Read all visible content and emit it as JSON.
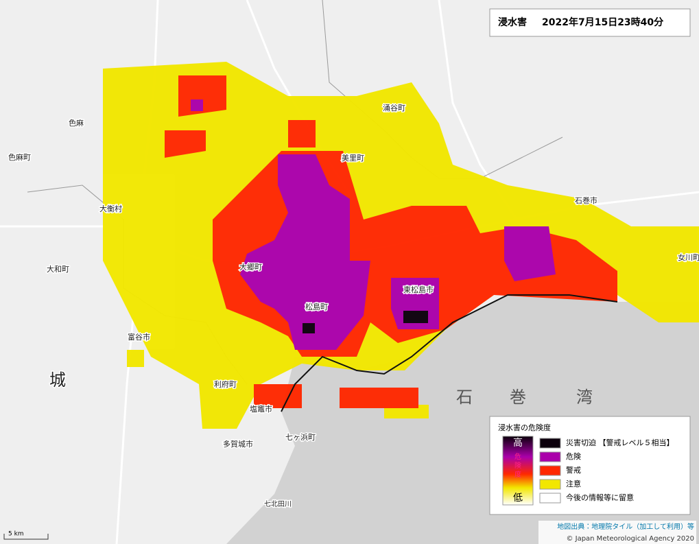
{
  "title": {
    "label": "浸水害",
    "datetime": "2022年7月15日23時40分"
  },
  "places": [
    "色麻町",
    "色麻",
    "大衡村",
    "大和町",
    "富谷市",
    "利府町",
    "塩竈市",
    "多賀城市",
    "七ヶ浜町",
    "松島町",
    "大郷町",
    "東松島市",
    "美里町",
    "涌谷町",
    "石巻市",
    "女川町",
    "城",
    "七北田川"
  ],
  "bay": [
    "石",
    "巻",
    "湾"
  ],
  "legend": {
    "title": "浸水害の危険度",
    "high": "高",
    "low": "低",
    "scale_chars": [
      "危",
      "険",
      "度"
    ],
    "items": [
      {
        "label": "災害切迫 【警戒レベル５相当】",
        "color": "#0c000c"
      },
      {
        "label": "危険",
        "color": "#aa00aa"
      },
      {
        "label": "警戒",
        "color": "#ff2800"
      },
      {
        "label": "注意",
        "color": "#f2e700"
      },
      {
        "label": "今後の情報等に留意",
        "color": "#ffffff"
      }
    ]
  },
  "credits": {
    "source": "地図出典：地理院タイル（加工して利用）等",
    "copyright": "© Japan Meteorological Agency 2020"
  },
  "scale": "5 km"
}
